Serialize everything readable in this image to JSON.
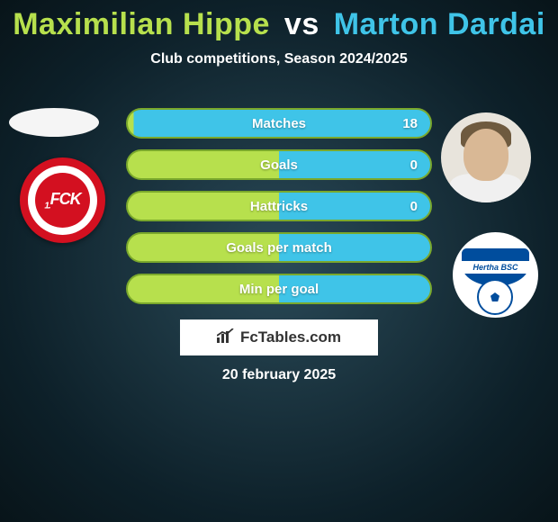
{
  "title": {
    "player1_name": "Maximilian Hippe",
    "vs": "vs",
    "player2_name": "Marton Dardai",
    "player1_color": "#b7e04d",
    "vs_color": "#ffffff",
    "player2_color": "#3fc4e8"
  },
  "subtitle": "Club competitions, Season 2024/2025",
  "stats": {
    "rows": [
      {
        "label": "Matches",
        "left_value": null,
        "right_value": "18",
        "left_fill": 0.02,
        "right_fill": 0.98
      },
      {
        "label": "Goals",
        "left_value": null,
        "right_value": "0",
        "left_fill": 0.5,
        "right_fill": 0.5
      },
      {
        "label": "Hattricks",
        "left_value": null,
        "right_value": "0",
        "left_fill": 0.5,
        "right_fill": 0.5
      },
      {
        "label": "Goals per match",
        "left_value": null,
        "right_value": null,
        "left_fill": 0.5,
        "right_fill": 0.5
      },
      {
        "label": "Min per goal",
        "left_value": null,
        "right_value": null,
        "left_fill": 0.5,
        "right_fill": 0.5
      }
    ],
    "left_color": "#b7e04d",
    "right_color": "#3fc4e8",
    "border_color": "#7aa82c",
    "label_color": "#ffffff"
  },
  "clubs": {
    "left": {
      "name": "1. FC Kaiserslautern",
      "badge_text": "FCK",
      "primary": "#d31020",
      "secondary": "#ffffff"
    },
    "right": {
      "name": "Hertha BSC",
      "badge_text": "Hertha BSC",
      "primary": "#004d9d",
      "secondary": "#ffffff"
    }
  },
  "attribution": {
    "label": "FcTables.com"
  },
  "date": "20 february 2025",
  "background": {
    "gradient_center": "#2a4a58",
    "gradient_edge": "#081419"
  }
}
